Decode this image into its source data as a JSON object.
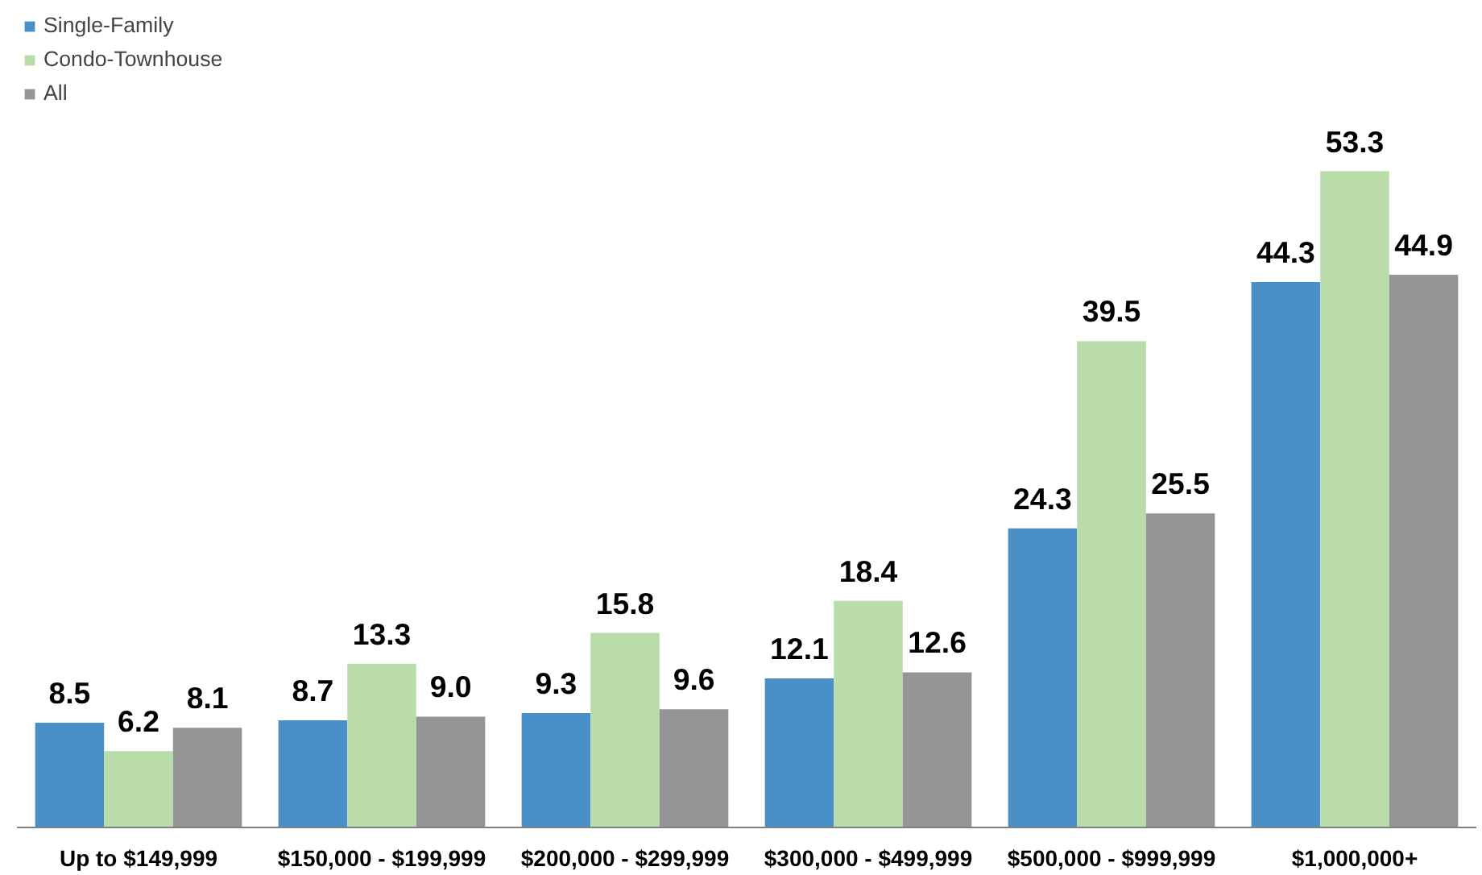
{
  "chart_data": {
    "type": "bar",
    "categories": [
      "Up to $149,999",
      "$150,000 - $199,999",
      "$200,000 - $299,999",
      "$300,000 - $499,999",
      "$500,000 - $999,999",
      "$1,000,000+"
    ],
    "series": [
      {
        "name": "Single-Family",
        "color": "#4a90c8",
        "values": [
          8.5,
          8.7,
          9.3,
          12.1,
          24.3,
          44.3
        ],
        "value_labels": [
          "8.5",
          "8.7",
          "9.3",
          "12.1",
          "24.3",
          "44.3"
        ]
      },
      {
        "name": "Condo-Townhouse",
        "color": "#b9dca9",
        "values": [
          6.2,
          13.3,
          15.8,
          18.4,
          39.5,
          53.3
        ],
        "value_labels": [
          "6.2",
          "13.3",
          "15.8",
          "18.4",
          "39.5",
          "53.3"
        ]
      },
      {
        "name": "All",
        "color": "#959595",
        "values": [
          8.1,
          9,
          9.6,
          12.6,
          25.5,
          44.9
        ],
        "value_labels": [
          "8.1",
          "9.0",
          "9.6",
          "12.6",
          "25.5",
          "44.9"
        ]
      }
    ],
    "legend": "top left",
    "grid": false
  }
}
